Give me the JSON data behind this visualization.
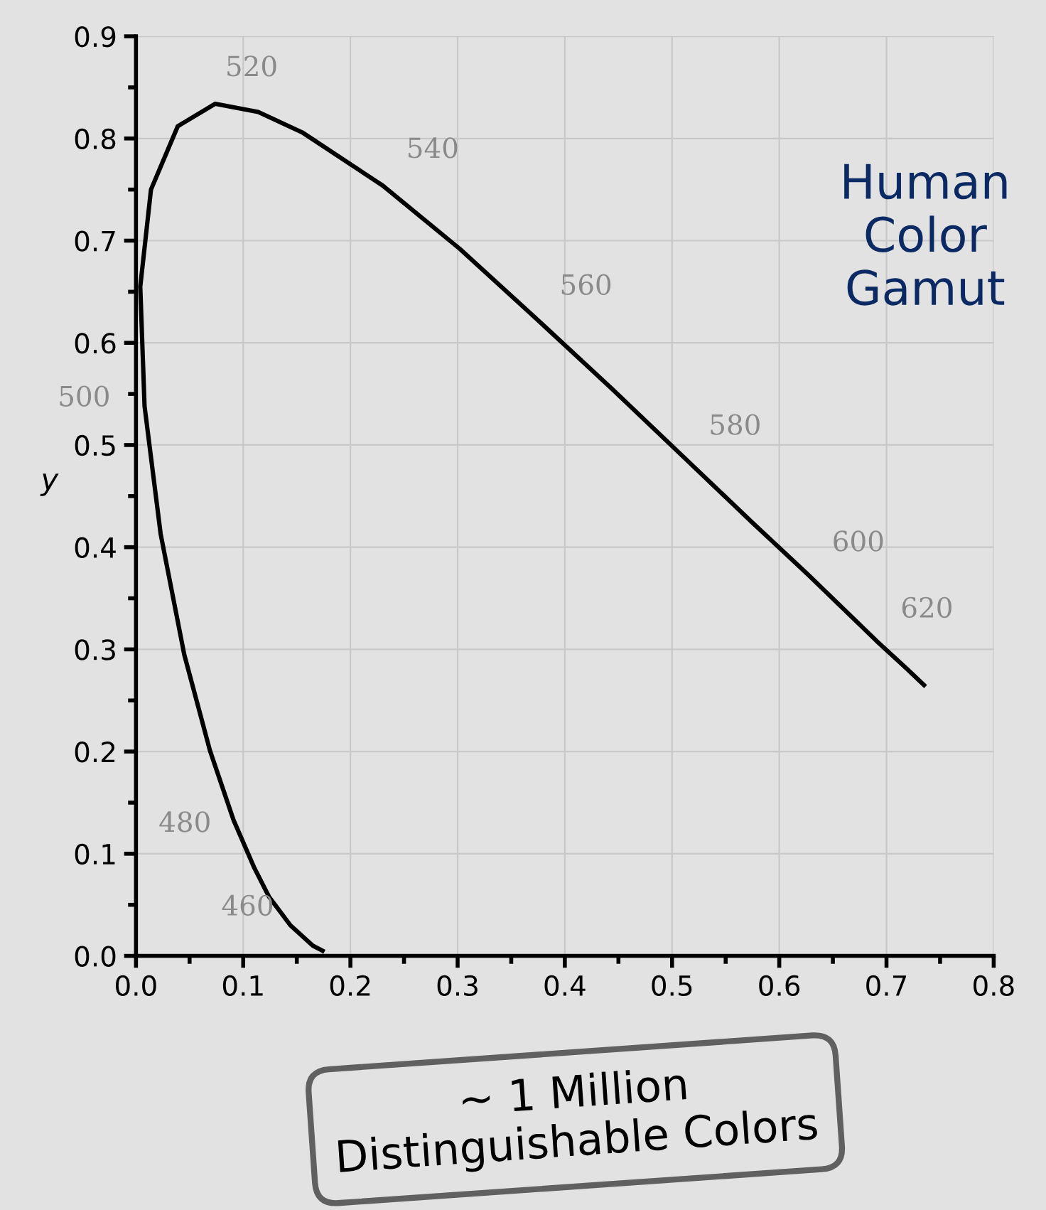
{
  "chart_data": {
    "type": "line",
    "title": "Human Color Gamut",
    "ylabel": "y",
    "series": [
      {
        "color": "#000000",
        "x": [
          0.174,
          0.165,
          0.144,
          0.124,
          0.11,
          0.091,
          0.069,
          0.045,
          0.023,
          0.008,
          0.004,
          0.014,
          0.039,
          0.074,
          0.114,
          0.155,
          0.23,
          0.302,
          0.373,
          0.444,
          0.512,
          0.575,
          0.627,
          0.691,
          0.719,
          0.735
        ],
        "values": [
          0.005,
          0.01,
          0.03,
          0.058,
          0.087,
          0.133,
          0.201,
          0.295,
          0.413,
          0.538,
          0.655,
          0.75,
          0.812,
          0.834,
          0.826,
          0.806,
          0.754,
          0.692,
          0.624,
          0.555,
          0.487,
          0.424,
          0.373,
          0.308,
          0.281,
          0.265
        ]
      }
    ],
    "annotations": [
      {
        "text": "460",
        "x": 0.144,
        "y": 0.03
      },
      {
        "text": "480",
        "x": 0.091,
        "y": 0.133
      },
      {
        "text": "500",
        "x": 0.008,
        "y": 0.538
      },
      {
        "text": "520",
        "x": 0.074,
        "y": 0.834
      },
      {
        "text": "540",
        "x": 0.23,
        "y": 0.754
      },
      {
        "text": "560",
        "x": 0.373,
        "y": 0.624
      },
      {
        "text": "580",
        "x": 0.512,
        "y": 0.487
      },
      {
        "text": "600",
        "x": 0.627,
        "y": 0.373
      },
      {
        "text": "620",
        "x": 0.691,
        "y": 0.308
      },
      "~ 1 Million\nDistinguishable Colors"
    ],
    "xlim": [
      0.0,
      0.8
    ],
    "ylim": [
      0.0,
      0.9
    ],
    "xticks": [
      {
        "value": 0,
        "label": "0.0"
      },
      0.1,
      0.2,
      0.3,
      0.4,
      0.5,
      0.6,
      0.7,
      0.8
    ],
    "yticks": [
      {
        "value": 0,
        "label": "0.0"
      },
      0.1,
      0.2,
      0.3,
      0.4,
      0.5,
      0.6,
      0.7,
      0.8,
      0.9
    ],
    "grid": true,
    "marker": "none",
    "line_style": "solid"
  }
}
